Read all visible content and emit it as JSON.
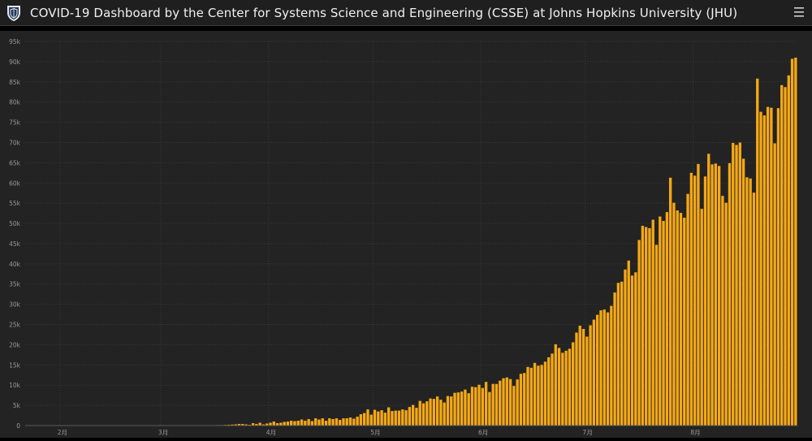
{
  "header": {
    "title": "COVID-19 Dashboard by the Center for Systems Science and Engineering (CSSE) at Johns Hopkins University (JHU)",
    "logo_icon": "jhu-shield-icon",
    "menu_icon": "hamburger-menu-icon"
  },
  "colors": {
    "bar": "#f5a816",
    "background": "#232323",
    "header": "#1f1f1f",
    "grid": "#3a3a3a",
    "tick_text": "#9a9a9a"
  },
  "chart_data": {
    "type": "bar",
    "title": "",
    "xlabel": "",
    "ylabel": "",
    "ylim": [
      0,
      95000
    ],
    "yticks": [
      0,
      5000,
      10000,
      15000,
      20000,
      25000,
      30000,
      35000,
      40000,
      45000,
      50000,
      55000,
      60000,
      65000,
      70000,
      75000,
      80000,
      85000,
      90000,
      95000
    ],
    "ytick_labels": [
      "0",
      "5k",
      "10k",
      "15k",
      "20k",
      "25k",
      "30k",
      "35k",
      "40k",
      "45k",
      "50k",
      "55k",
      "60k",
      "65k",
      "70k",
      "75k",
      "80k",
      "85k",
      "90k",
      "95k"
    ],
    "grid": true,
    "x_start_date": "2020-01-22",
    "x_end_date": "2020-08-23",
    "xticks": [
      {
        "date": "2020-02-01",
        "label": "2月"
      },
      {
        "date": "2020-03-01",
        "label": "3月"
      },
      {
        "date": "2020-04-01",
        "label": "4月"
      },
      {
        "date": "2020-05-01",
        "label": "5月"
      },
      {
        "date": "2020-06-01",
        "label": "6月"
      },
      {
        "date": "2020-07-01",
        "label": "7月"
      },
      {
        "date": "2020-08-01",
        "label": "8月"
      }
    ],
    "series": [
      {
        "values": [
          0,
          0,
          0,
          0,
          0,
          0,
          0,
          0,
          0,
          0,
          0,
          0,
          0,
          0,
          0,
          0,
          0,
          0,
          0,
          0,
          0,
          0,
          0,
          0,
          0,
          0,
          0,
          0,
          0,
          0,
          0,
          0,
          0,
          0,
          0,
          0,
          0,
          0,
          0,
          0,
          0,
          0,
          0,
          0,
          0,
          0,
          0,
          0,
          0,
          0,
          0,
          0,
          0,
          0,
          0,
          50,
          100,
          150,
          200,
          250,
          300,
          400,
          400,
          300,
          200,
          600,
          400,
          700,
          300,
          500,
          700,
          1000,
          600,
          700,
          900,
          1000,
          1200,
          1100,
          1200,
          1500,
          1200,
          1600,
          1100,
          1800,
          1500,
          1800,
          1200,
          1800,
          1600,
          1800,
          1400,
          1800,
          1800,
          2000,
          1700,
          2200,
          2800,
          3100,
          4000,
          2700,
          3900,
          3500,
          3800,
          3200,
          4500,
          3600,
          3700,
          3700,
          4000,
          3800,
          4600,
          5100,
          4400,
          6100,
          5500,
          6000,
          6700,
          6600,
          7200,
          6400,
          5700,
          7300,
          7200,
          8100,
          8200,
          8400,
          8900,
          8000,
          9600,
          9500,
          10100,
          9300,
          10800,
          8300,
          10300,
          10300,
          11100,
          11700,
          11900,
          11500,
          9800,
          11400,
          12800,
          13000,
          14500,
          14300,
          15500,
          14800,
          15000,
          15800,
          16900,
          17800,
          20100,
          19200,
          18000,
          18500,
          19000,
          20600,
          23000,
          24700,
          23900,
          22000,
          24800,
          26200,
          27400,
          28500,
          28700,
          28000,
          29600,
          32900,
          35300,
          35600,
          38600,
          40800,
          37100,
          37900,
          45900,
          49400,
          49100,
          48800,
          50900,
          44700,
          51700,
          50600,
          52800,
          61300,
          55100,
          53200,
          52600,
          51400,
          57300,
          62500,
          61800,
          64700,
          53600,
          61600,
          67200,
          64600,
          64800,
          64200,
          56800,
          55100,
          64900,
          69900,
          69400,
          70000,
          66000,
          61400,
          61100,
          57600,
          85800,
          77600,
          76700,
          78800,
          78600,
          69800,
          78500,
          84200,
          83700,
          86600,
          90700,
          91000
        ]
      }
    ]
  }
}
